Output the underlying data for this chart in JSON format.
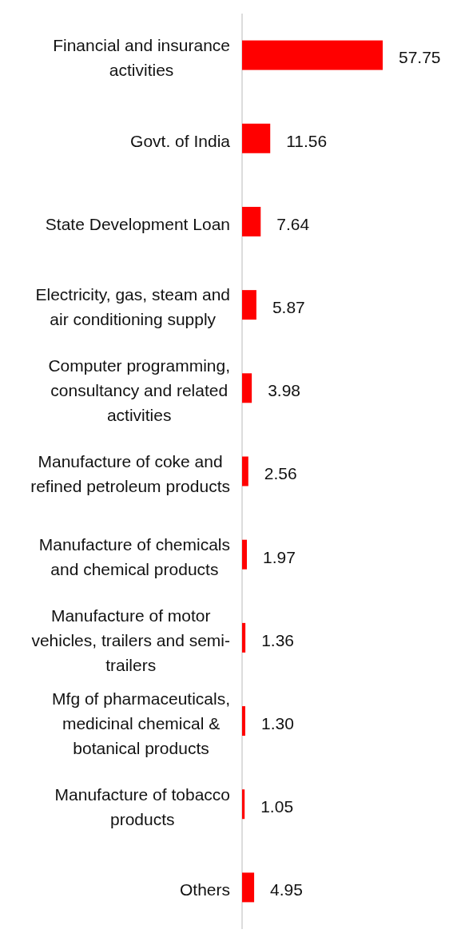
{
  "chart_data": {
    "type": "bar",
    "orientation": "horizontal",
    "categories": [
      "Financial and insurance activities",
      "Govt. of India",
      "State Development Loan",
      "Electricity, gas, steam and air conditioning supply",
      "Computer programming, consultancy and related activities",
      "Manufacture of coke and refined petroleum products",
      "Manufacture of chemicals and chemical products",
      "Manufacture of motor vehicles, trailers and semi-trailers",
      "Mfg of pharmaceuticals, medicinal chemical & botanical products",
      "Manufacture of tobacco products",
      "Others"
    ],
    "values": [
      57.75,
      11.56,
      7.64,
      5.87,
      3.98,
      2.56,
      1.97,
      1.36,
      1.3,
      1.05,
      4.95
    ],
    "value_labels": [
      "57.75",
      "11.56",
      "7.64",
      "5.87",
      "3.98",
      "2.56",
      "1.97",
      "1.36",
      "1.30",
      "1.05",
      "4.95"
    ],
    "color": "#ff0000"
  }
}
